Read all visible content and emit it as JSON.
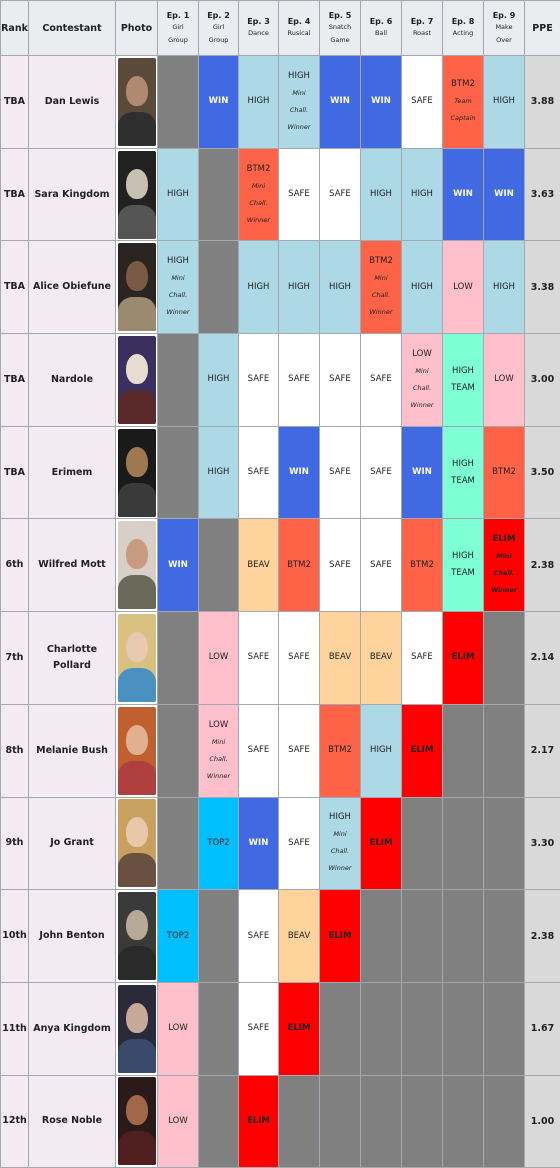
{
  "headers": {
    "rank": "Rank",
    "contestant": "Contestant",
    "photo": "Photo",
    "episodes": [
      {
        "title": "Ep. 1",
        "sub": [
          "Girl",
          "Group"
        ]
      },
      {
        "title": "Ep. 2",
        "sub": [
          "Girl",
          "Group"
        ]
      },
      {
        "title": "Ep. 3",
        "sub": [
          "Dance"
        ]
      },
      {
        "title": "Ep. 4",
        "sub": [
          "Rusical"
        ]
      },
      {
        "title": "Ep. 5",
        "sub": [
          "Snatch",
          "Game"
        ]
      },
      {
        "title": "Ep. 6",
        "sub": [
          "Ball"
        ]
      },
      {
        "title": "Ep. 7",
        "sub": [
          "Roast"
        ]
      },
      {
        "title": "Ep. 8",
        "sub": [
          "Acting"
        ]
      },
      {
        "title": "Ep. 9",
        "sub": [
          "Make",
          "Over"
        ]
      }
    ],
    "ppe": "PPE"
  },
  "status_colors": {
    "WIN": "#4169e1",
    "HIGH": "#add8e6",
    "SAFE": "#ffffff",
    "LOW": "#ffc0cb",
    "BTM2": "#ff6347",
    "ELIM": "#ff0000",
    "TOP2": "#00bfff",
    "BEAV": "#ffd39b",
    "HIGH TEAM": "#7fffd4",
    "NA": "#808080"
  },
  "rows": [
    {
      "rank": "TBA",
      "name": "Dan Lewis",
      "photo_icon": "dan-lewis-photo",
      "photo_colors": [
        "#5a4a3a",
        "#b08a70",
        "#2f2f2f"
      ],
      "ppe": "3.88",
      "cells": [
        {
          "s": "NA"
        },
        {
          "s": "WIN",
          "t": "WIN"
        },
        {
          "s": "HIGH",
          "t": "HIGH"
        },
        {
          "s": "HIGH",
          "t": "HIGH",
          "n": [
            "Mini",
            "Chall.",
            "Winner"
          ]
        },
        {
          "s": "WIN",
          "t": "WIN"
        },
        {
          "s": "WIN",
          "t": "WIN"
        },
        {
          "s": "SAFE",
          "t": "SAFE"
        },
        {
          "s": "BTM2",
          "t": "BTM2",
          "n": [
            "Team",
            "Captain"
          ]
        },
        {
          "s": "HIGH",
          "t": "HIGH"
        }
      ]
    },
    {
      "rank": "TBA",
      "name": "Sara Kingdom",
      "photo_icon": "sara-kingdom-photo",
      "photo_colors": [
        "#222222",
        "#c8c0b0",
        "#555555"
      ],
      "ppe": "3.63",
      "cells": [
        {
          "s": "HIGH",
          "t": "HIGH"
        },
        {
          "s": "NA"
        },
        {
          "s": "BTM2",
          "t": "BTM2",
          "n": [
            "Mini",
            "Chall.",
            "Winner"
          ]
        },
        {
          "s": "SAFE",
          "t": "SAFE"
        },
        {
          "s": "SAFE",
          "t": "SAFE"
        },
        {
          "s": "HIGH",
          "t": "HIGH"
        },
        {
          "s": "HIGH",
          "t": "HIGH"
        },
        {
          "s": "WIN",
          "t": "WIN"
        },
        {
          "s": "WIN",
          "t": "WIN"
        }
      ]
    },
    {
      "rank": "TBA",
      "name": "Alice Obiefune",
      "photo_icon": "alice-obiefune-photo",
      "photo_colors": [
        "#2a2520",
        "#7a5a45",
        "#9a8a70"
      ],
      "ppe": "3.38",
      "cells": [
        {
          "s": "HIGH",
          "t": "HIGH",
          "n": [
            "Mini",
            "Chall.",
            "Winner"
          ]
        },
        {
          "s": "NA"
        },
        {
          "s": "HIGH",
          "t": "HIGH"
        },
        {
          "s": "HIGH",
          "t": "HIGH"
        },
        {
          "s": "HIGH",
          "t": "HIGH"
        },
        {
          "s": "BTM2",
          "t": "BTM2",
          "n": [
            "Mini",
            "Chall.",
            "Winner"
          ]
        },
        {
          "s": "HIGH",
          "t": "HIGH"
        },
        {
          "s": "LOW",
          "t": "LOW"
        },
        {
          "s": "HIGH",
          "t": "HIGH"
        }
      ]
    },
    {
      "rank": "TBA",
      "name": "Nardole",
      "photo_icon": "nardole-photo",
      "photo_colors": [
        "#3a3060",
        "#e8dcd0",
        "#5a2a2a"
      ],
      "ppe": "3.00",
      "cells": [
        {
          "s": "NA"
        },
        {
          "s": "HIGH",
          "t": "HIGH"
        },
        {
          "s": "SAFE",
          "t": "SAFE"
        },
        {
          "s": "SAFE",
          "t": "SAFE"
        },
        {
          "s": "SAFE",
          "t": "SAFE"
        },
        {
          "s": "SAFE",
          "t": "SAFE"
        },
        {
          "s": "LOW",
          "t": "LOW",
          "n": [
            "Mini",
            "Chall.",
            "Winner"
          ]
        },
        {
          "s": "HIGH TEAM",
          "t": "HIGH",
          "t2": "TEAM"
        },
        {
          "s": "LOW",
          "t": "LOW"
        }
      ]
    },
    {
      "rank": "TBA",
      "name": "Erimem",
      "photo_icon": "erimem-photo",
      "photo_colors": [
        "#1a1a1a",
        "#a07850",
        "#3a3a3a"
      ],
      "ppe": "3.50",
      "cells": [
        {
          "s": "NA"
        },
        {
          "s": "HIGH",
          "t": "HIGH"
        },
        {
          "s": "SAFE",
          "t": "SAFE"
        },
        {
          "s": "WIN",
          "t": "WIN"
        },
        {
          "s": "SAFE",
          "t": "SAFE"
        },
        {
          "s": "SAFE",
          "t": "SAFE"
        },
        {
          "s": "WIN",
          "t": "WIN"
        },
        {
          "s": "HIGH TEAM",
          "t": "HIGH",
          "t2": "TEAM"
        },
        {
          "s": "BTM2",
          "t": "BTM2"
        }
      ]
    },
    {
      "rank": "6th",
      "name": "Wilfred Mott",
      "photo_icon": "wilfred-mott-photo",
      "photo_colors": [
        "#d8d0c8",
        "#c89a80",
        "#6a6a5a"
      ],
      "ppe": "2.38",
      "cells": [
        {
          "s": "WIN",
          "t": "WIN"
        },
        {
          "s": "NA"
        },
        {
          "s": "BEAV",
          "t": "BEAV"
        },
        {
          "s": "BTM2",
          "t": "BTM2"
        },
        {
          "s": "SAFE",
          "t": "SAFE"
        },
        {
          "s": "SAFE",
          "t": "SAFE"
        },
        {
          "s": "BTM2",
          "t": "BTM2"
        },
        {
          "s": "HIGH TEAM",
          "t": "HIGH",
          "t2": "TEAM"
        },
        {
          "s": "ELIM",
          "t": "ELIM",
          "n": [
            "Mini",
            "Chall.",
            "Winner"
          ]
        }
      ]
    },
    {
      "rank": "7th",
      "name": "Charlotte Pollard",
      "photo_icon": "charlotte-pollard-photo",
      "photo_colors": [
        "#d8c080",
        "#e8c8b0",
        "#4a90c0"
      ],
      "ppe": "2.14",
      "cells": [
        {
          "s": "NA"
        },
        {
          "s": "LOW",
          "t": "LOW"
        },
        {
          "s": "SAFE",
          "t": "SAFE"
        },
        {
          "s": "SAFE",
          "t": "SAFE"
        },
        {
          "s": "BEAV",
          "t": "BEAV"
        },
        {
          "s": "BEAV",
          "t": "BEAV"
        },
        {
          "s": "SAFE",
          "t": "SAFE"
        },
        {
          "s": "ELIM",
          "t": "ELIM"
        },
        {
          "s": "NA"
        }
      ]
    },
    {
      "rank": "8th",
      "name": "Melanie Bush",
      "photo_icon": "melanie-bush-photo",
      "photo_colors": [
        "#c06030",
        "#e0b090",
        "#b04040"
      ],
      "ppe": "2.17",
      "cells": [
        {
          "s": "NA"
        },
        {
          "s": "LOW",
          "t": "LOW",
          "n": [
            "Mini",
            "Chall.",
            "Winner"
          ]
        },
        {
          "s": "SAFE",
          "t": "SAFE"
        },
        {
          "s": "SAFE",
          "t": "SAFE"
        },
        {
          "s": "BTM2",
          "t": "BTM2"
        },
        {
          "s": "HIGH",
          "t": "HIGH"
        },
        {
          "s": "ELIM",
          "t": "ELIM"
        },
        {
          "s": "NA"
        },
        {
          "s": "NA"
        }
      ]
    },
    {
      "rank": "9th",
      "name": "Jo Grant",
      "photo_icon": "jo-grant-photo",
      "photo_colors": [
        "#c8a060",
        "#e8c8a8",
        "#6a5040"
      ],
      "ppe": "3.30",
      "cells": [
        {
          "s": "NA"
        },
        {
          "s": "TOP2",
          "t": "TOP2"
        },
        {
          "s": "WIN",
          "t": "WIN"
        },
        {
          "s": "SAFE",
          "t": "SAFE"
        },
        {
          "s": "HIGH",
          "t": "HIGH",
          "n": [
            "Mini",
            "Chall.",
            "Winner"
          ]
        },
        {
          "s": "ELIM",
          "t": "ELIM"
        },
        {
          "s": "NA"
        },
        {
          "s": "NA"
        },
        {
          "s": "NA"
        }
      ]
    },
    {
      "rank": "10th",
      "name": "John Benton",
      "photo_icon": "john-benton-photo",
      "photo_colors": [
        "#3a3a3a",
        "#b8a898",
        "#2a2a2a"
      ],
      "ppe": "2.38",
      "cells": [
        {
          "s": "TOP2",
          "t": "TOP2"
        },
        {
          "s": "NA"
        },
        {
          "s": "SAFE",
          "t": "SAFE"
        },
        {
          "s": "BEAV",
          "t": "BEAV"
        },
        {
          "s": "ELIM",
          "t": "ELIM"
        },
        {
          "s": "NA"
        },
        {
          "s": "NA"
        },
        {
          "s": "NA"
        },
        {
          "s": "NA"
        }
      ]
    },
    {
      "rank": "11th",
      "name": "Anya Kingdom",
      "photo_icon": "anya-kingdom-photo",
      "photo_colors": [
        "#2a2a3a",
        "#c8a898",
        "#3a4a6a"
      ],
      "ppe": "1.67",
      "cells": [
        {
          "s": "LOW",
          "t": "LOW"
        },
        {
          "s": "NA"
        },
        {
          "s": "SAFE",
          "t": "SAFE"
        },
        {
          "s": "ELIM",
          "t": "ELIM"
        },
        {
          "s": "NA"
        },
        {
          "s": "NA"
        },
        {
          "s": "NA"
        },
        {
          "s": "NA"
        },
        {
          "s": "NA"
        }
      ]
    },
    {
      "rank": "12th",
      "name": "Rose Noble",
      "photo_icon": "rose-noble-photo",
      "photo_colors": [
        "#2a1a1a",
        "#a06848",
        "#502020"
      ],
      "ppe": "1.00",
      "cells": [
        {
          "s": "LOW",
          "t": "LOW"
        },
        {
          "s": "NA"
        },
        {
          "s": "ELIM",
          "t": "ELIM"
        },
        {
          "s": "NA"
        },
        {
          "s": "NA"
        },
        {
          "s": "NA"
        },
        {
          "s": "NA"
        },
        {
          "s": "NA"
        },
        {
          "s": "NA"
        }
      ]
    }
  ]
}
